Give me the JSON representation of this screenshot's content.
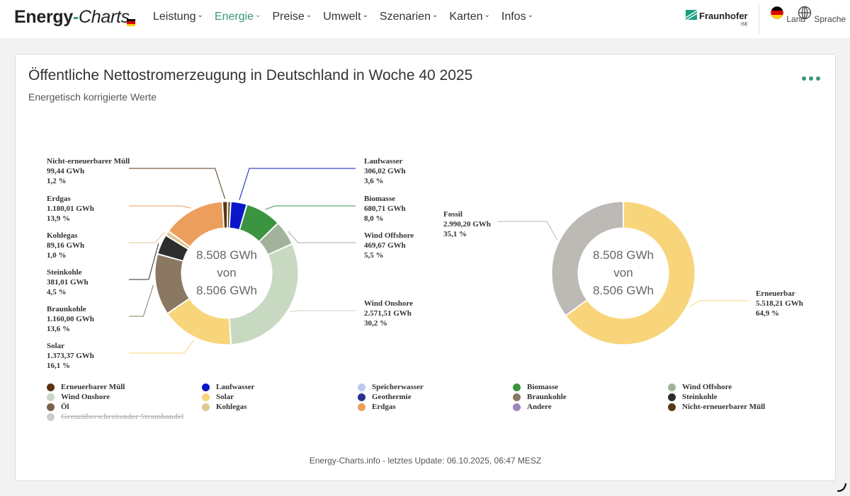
{
  "header": {
    "brand_main": "Energy",
    "brand_dash": "-",
    "brand_sub": "Charts",
    "nav": [
      {
        "label": "Leistung",
        "active": false
      },
      {
        "label": "Energie",
        "active": true
      },
      {
        "label": "Preise",
        "active": false
      },
      {
        "label": "Umwelt",
        "active": false
      },
      {
        "label": "Szenarien",
        "active": false
      },
      {
        "label": "Karten",
        "active": false
      },
      {
        "label": "Infos",
        "active": false
      }
    ],
    "partner_name": "Fraunhofer",
    "partner_sub": "ISE",
    "land_label": "Land",
    "sprache_label": "Sprache"
  },
  "colors": {
    "accent": "#3a9a72",
    "flag_black": "#000000",
    "flag_red": "#dd0000",
    "flag_gold": "#ffce00"
  },
  "chart": {
    "title": "Öffentliche Nettostromerzeugung in Deutschland in Woche 40 2025",
    "subtitle": "Energetisch korrigierte Werte",
    "footer": "Energy-Charts.info - letztes Update: 06.10.2025, 06:47 MESZ"
  },
  "chart_data": [
    {
      "type": "pie",
      "variant": "donut",
      "center_text": [
        "8.508 GWh",
        "von",
        "8.506 GWh"
      ],
      "unit": "GWh",
      "slices": [
        {
          "name": "Nicht-erneuerbarer Müll",
          "value": 99.44,
          "value_text": "99,44 GWh",
          "percent_text": "1,2 %",
          "color": "#553a17"
        },
        {
          "name": "Erneuerbarer Müll",
          "value": 56.32,
          "value_text": "",
          "percent_text": "",
          "color": "#5a3310"
        },
        {
          "name": "Laufwasser",
          "value": 306.02,
          "value_text": "306,02 GWh",
          "percent_text": "3,6 %",
          "color": "#0a17c9"
        },
        {
          "name": "Biomasse",
          "value": 680.71,
          "value_text": "680,71 GWh",
          "percent_text": "8,0 %",
          "color": "#3a9440"
        },
        {
          "name": "Wind Offshore",
          "value": 469.67,
          "value_text": "469,67 GWh",
          "percent_text": "5,5 %",
          "color": "#a1b39b"
        },
        {
          "name": "Wind Onshore",
          "value": 2571.51,
          "value_text": "2.571,51 GWh",
          "percent_text": "30,2 %",
          "color": "#c8d9c2"
        },
        {
          "name": "Solar",
          "value": 1373.37,
          "value_text": "1.373,37 GWh",
          "percent_text": "16,1 %",
          "color": "#f8d57a"
        },
        {
          "name": "Braunkohle",
          "value": 1160.0,
          "value_text": "1.160,00 GWh",
          "percent_text": "13,6 %",
          "color": "#8b7862"
        },
        {
          "name": "Steinkohle",
          "value": 381.01,
          "value_text": "381,01 GWh",
          "percent_text": "4,5 %",
          "color": "#2d2d2d"
        },
        {
          "name": "Kohlegas",
          "value": 89.16,
          "value_text": "89,16 GWh",
          "percent_text": "1,0 %",
          "color": "#e0c690"
        },
        {
          "name": "Erdgas",
          "value": 1180.01,
          "value_text": "1.180,01 GWh",
          "percent_text": "13,9 %",
          "color": "#ec9e5c"
        }
      ],
      "callouts": [
        {
          "slice": "Nicht-erneuerbarer Müll",
          "title": "Nicht-erneuerbarer Müll",
          "value_text": "99,44 GWh",
          "percent_text": "1,2 %",
          "side": "left"
        },
        {
          "slice": "Erdgas",
          "title": "Erdgas",
          "value_text": "1.180,01 GWh",
          "percent_text": "13,9 %",
          "side": "left"
        },
        {
          "slice": "Kohlegas",
          "title": "Kohlegas",
          "value_text": "89,16 GWh",
          "percent_text": "1,0 %",
          "side": "left"
        },
        {
          "slice": "Steinkohle",
          "title": "Steinkohle",
          "value_text": "381,01 GWh",
          "percent_text": "4,5 %",
          "side": "left"
        },
        {
          "slice": "Braunkohle",
          "title": "Braunkohle",
          "value_text": "1.160,00 GWh",
          "percent_text": "13,6 %",
          "side": "left"
        },
        {
          "slice": "Solar",
          "title": "Solar",
          "value_text": "1.373,37 GWh",
          "percent_text": "16,1 %",
          "side": "left"
        },
        {
          "slice": "Laufwasser",
          "title": "Laufwasser",
          "value_text": "306,02 GWh",
          "percent_text": "3,6 %",
          "side": "right"
        },
        {
          "slice": "Biomasse",
          "title": "Biomasse",
          "value_text": "680,71 GWh",
          "percent_text": "8,0 %",
          "side": "right"
        },
        {
          "slice": "Wind Offshore",
          "title": "Wind Offshore",
          "value_text": "469,67 GWh",
          "percent_text": "5,5 %",
          "side": "right"
        },
        {
          "slice": "Wind Onshore",
          "title": "Wind Onshore",
          "value_text": "2.571,51 GWh",
          "percent_text": "30,2 %",
          "side": "right"
        }
      ]
    },
    {
      "type": "pie",
      "variant": "donut",
      "center_text": [
        "8.508 GWh",
        "von",
        "8.506 GWh"
      ],
      "unit": "GWh",
      "slices": [
        {
          "name": "Erneuerbar",
          "value": 5518.21,
          "value_text": "5.518,21 GWh",
          "percent_text": "64,9 %",
          "color": "#f8d57a"
        },
        {
          "name": "Fossil",
          "value": 2990.2,
          "value_text": "2.990,20 GWh",
          "percent_text": "35,1 %",
          "color": "#bdb9b4"
        }
      ],
      "callouts": [
        {
          "slice": "Fossil",
          "title": "Fossil",
          "value_text": "2.990,20 GWh",
          "percent_text": "35,1 %",
          "side": "left"
        },
        {
          "slice": "Erneuerbar",
          "title": "Erneuerbar",
          "value_text": "5.518,21 GWh",
          "percent_text": "64,9 %",
          "side": "right"
        }
      ]
    }
  ],
  "legend": [
    {
      "label": "Erneuerbarer Müll",
      "color": "#5a3310",
      "active": true
    },
    {
      "label": "Laufwasser",
      "color": "#0a17c9",
      "active": true
    },
    {
      "label": "Speicherwasser",
      "color": "#bccaf0",
      "active": true
    },
    {
      "label": "Biomasse",
      "color": "#3a9440",
      "active": true
    },
    {
      "label": "Wind Offshore",
      "color": "#a1b39b",
      "active": true
    },
    {
      "label": "Wind Onshore",
      "color": "#c8d9c2",
      "active": true
    },
    {
      "label": "Solar",
      "color": "#f8d57a",
      "active": true
    },
    {
      "label": "Geothermie",
      "color": "#2a3590",
      "active": true
    },
    {
      "label": "Braunkohle",
      "color": "#8b7862",
      "active": true
    },
    {
      "label": "Steinkohle",
      "color": "#2d2d2d",
      "active": true
    },
    {
      "label": "Öl",
      "color": "#7d6148",
      "active": true
    },
    {
      "label": "Kohlegas",
      "color": "#e0c690",
      "active": true
    },
    {
      "label": "Erdgas",
      "color": "#ec9e5c",
      "active": true
    },
    {
      "label": "Andere",
      "color": "#9e86bd",
      "active": true
    },
    {
      "label": "Nicht-erneuerbarer Müll",
      "color": "#553a17",
      "active": true
    },
    {
      "label": "Grenzüberschreitender Stromhandel",
      "color": "#cccccc",
      "active": false
    }
  ]
}
